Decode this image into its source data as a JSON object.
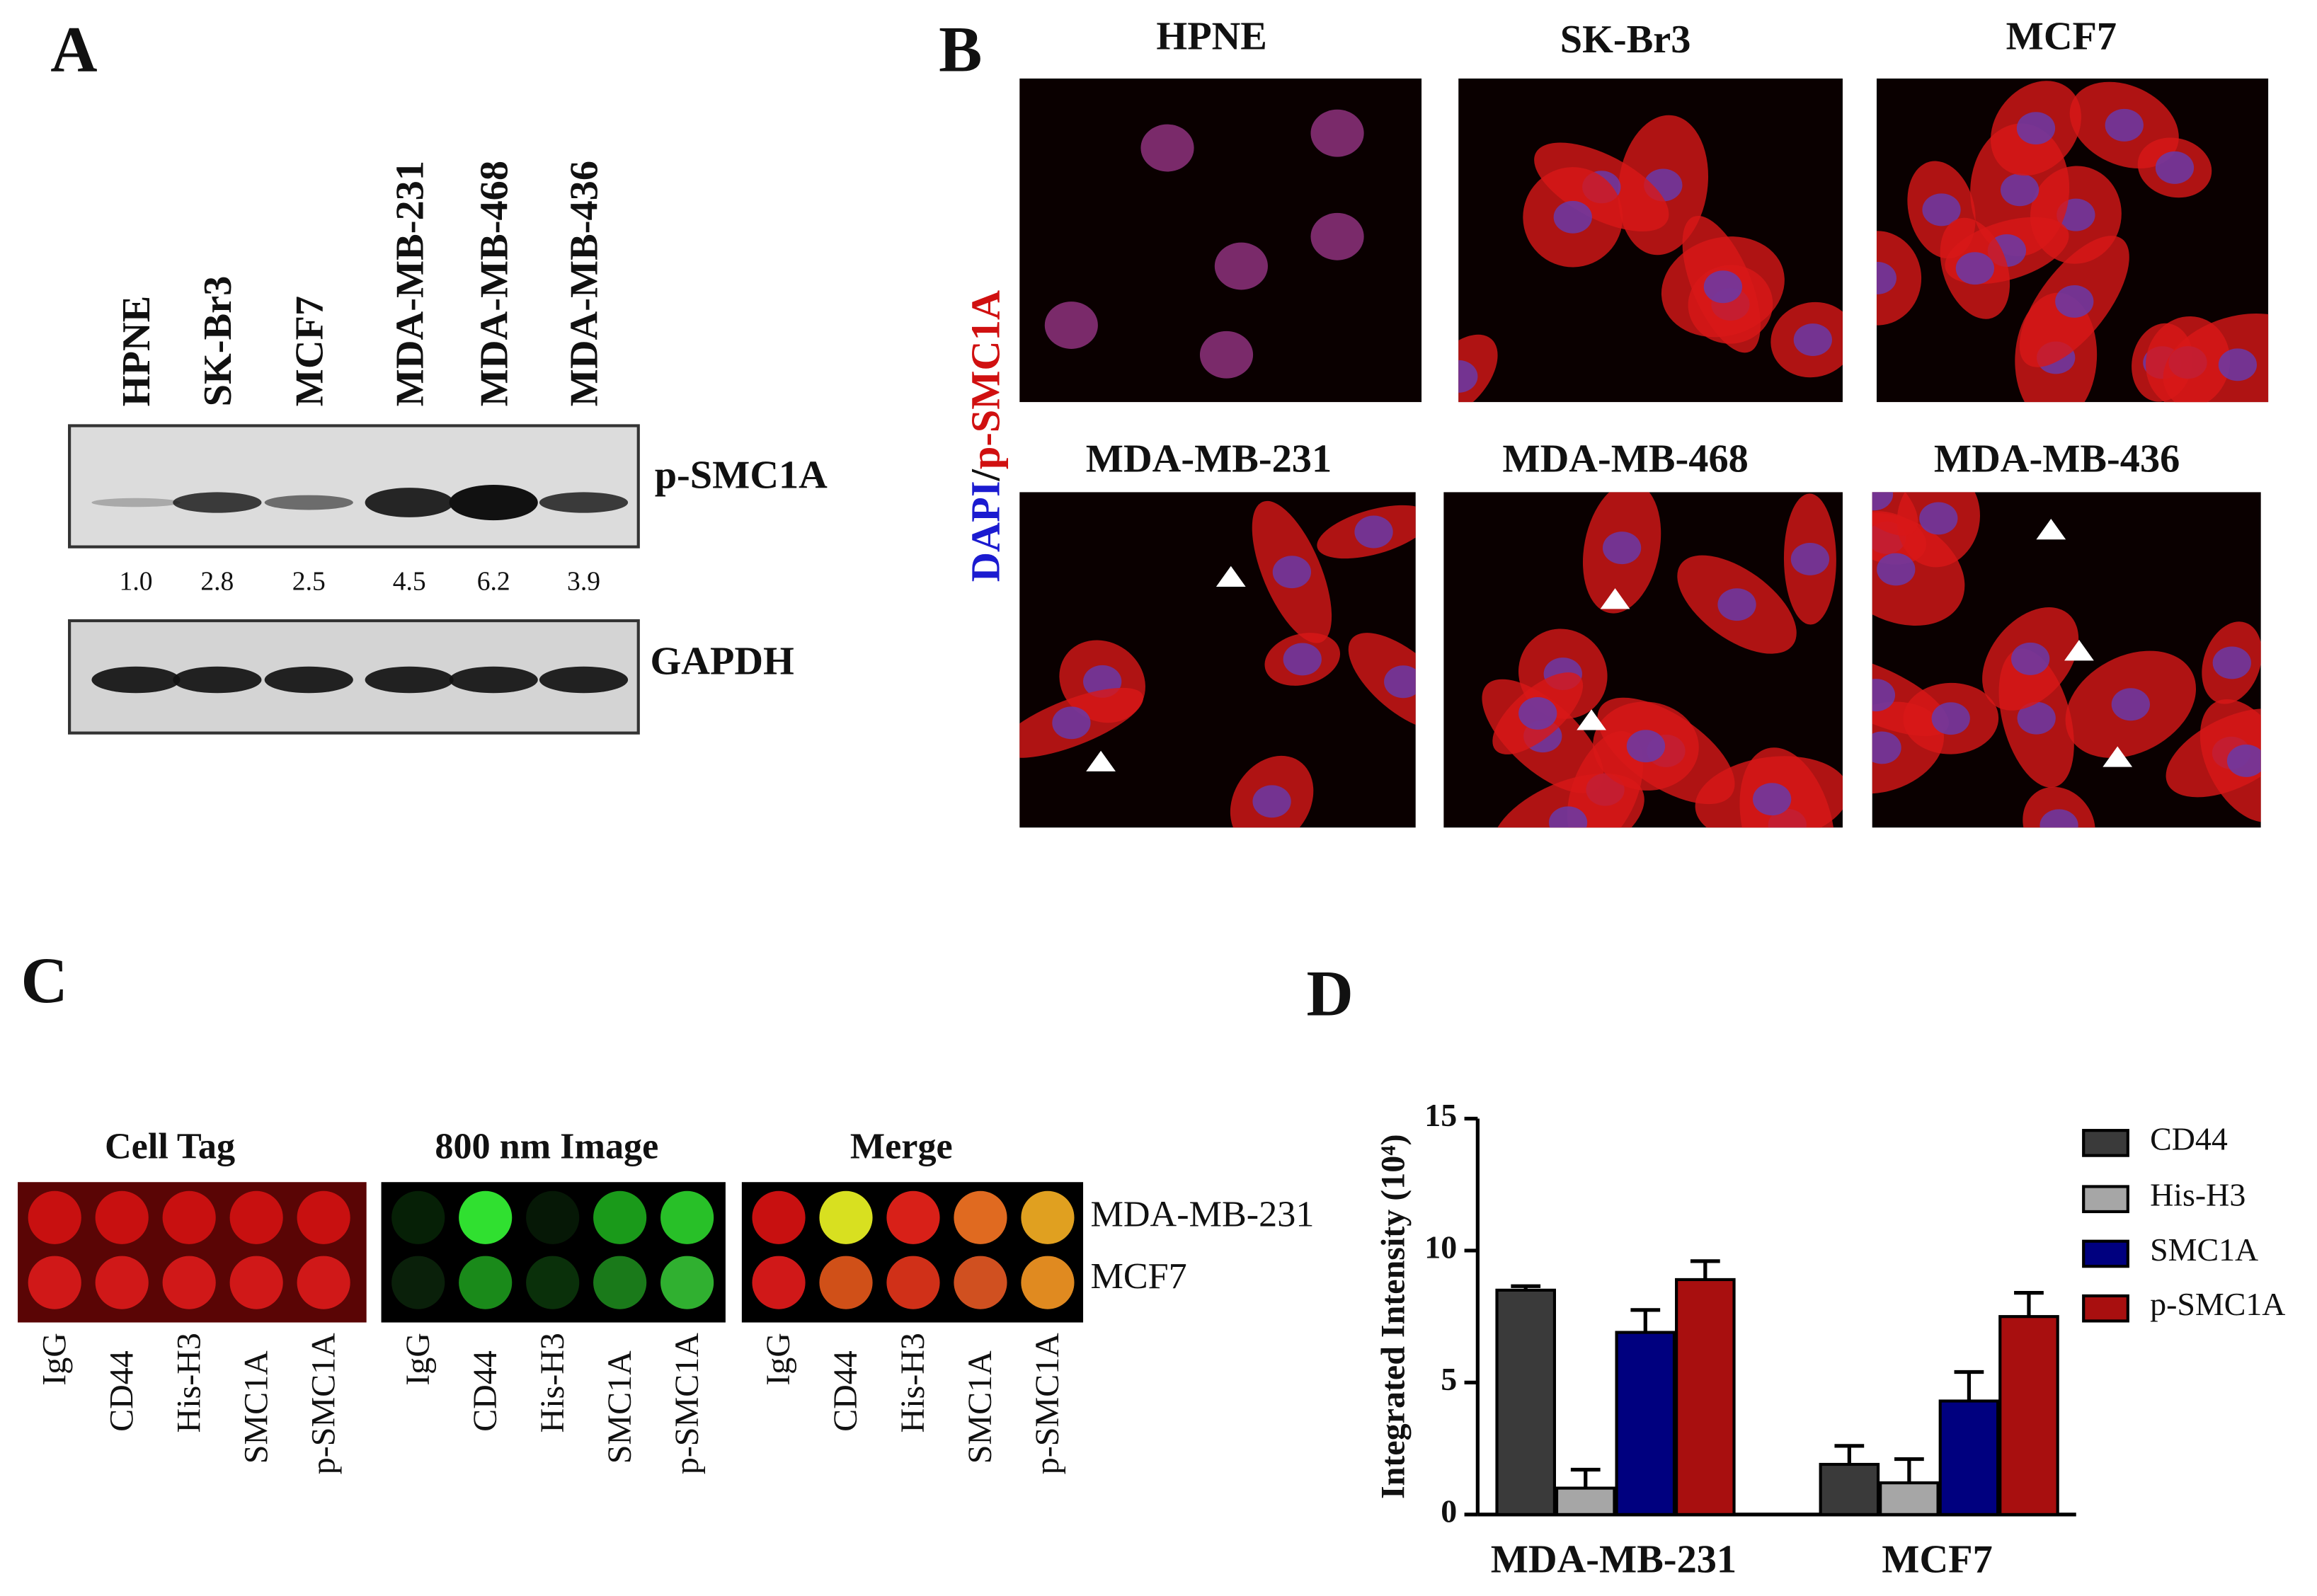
{
  "panel_a": {
    "label": "A",
    "lanes": [
      "HPNE",
      "SK-Br3",
      "MCF7",
      "MDA-MB-231",
      "MDA-MB-468",
      "MDA-MB-436"
    ],
    "blots": [
      "p-SMC1A",
      "GAPDH"
    ],
    "quantification": [
      "1.0",
      "2.8",
      "2.5",
      "4.5",
      "6.2",
      "3.9"
    ]
  },
  "panel_b": {
    "label": "B",
    "stain_label": [
      "DAPI",
      "/",
      "p-SMC1A"
    ],
    "cell_lines": [
      "HPNE",
      "SK-Br3",
      "MCF7",
      "MDA-MB-231",
      "MDA-MB-468",
      "MDA-MB-436"
    ]
  },
  "panel_c": {
    "label": "C",
    "images": [
      "Cell Tag",
      "800 nm Image",
      "Merge"
    ],
    "rows": [
      "MDA-MB-231",
      "MCF7"
    ],
    "columns": [
      "IgG",
      "CD44",
      "His-H3",
      "SMC1A",
      "p-SMC1A"
    ]
  },
  "chart_data": {
    "type": "bar",
    "label": "D",
    "y_label": "Integrated Intensity (10⁴)",
    "categories": [
      "MDA-MB-231",
      "MCF7"
    ],
    "series": [
      {
        "name": "CD44",
        "color": "#3a3a3a",
        "values": [
          8.5,
          1.9
        ],
        "errors": [
          0.15,
          0.7
        ]
      },
      {
        "name": "His-H3",
        "color": "#a6a6a6",
        "values": [
          1.0,
          1.2
        ],
        "errors": [
          0.7,
          0.9
        ]
      },
      {
        "name": "SMC1A",
        "color": "#00007f",
        "values": [
          6.9,
          4.3
        ],
        "errors": [
          0.85,
          1.1
        ]
      },
      {
        "name": "p-SMC1A",
        "color": "#a80f0f",
        "values": [
          8.9,
          7.5
        ],
        "errors": [
          0.7,
          0.9
        ]
      }
    ],
    "ylim": [
      0,
      15
    ],
    "yticks": [
      0,
      5,
      10,
      15
    ],
    "grid": false,
    "legend": "right"
  }
}
